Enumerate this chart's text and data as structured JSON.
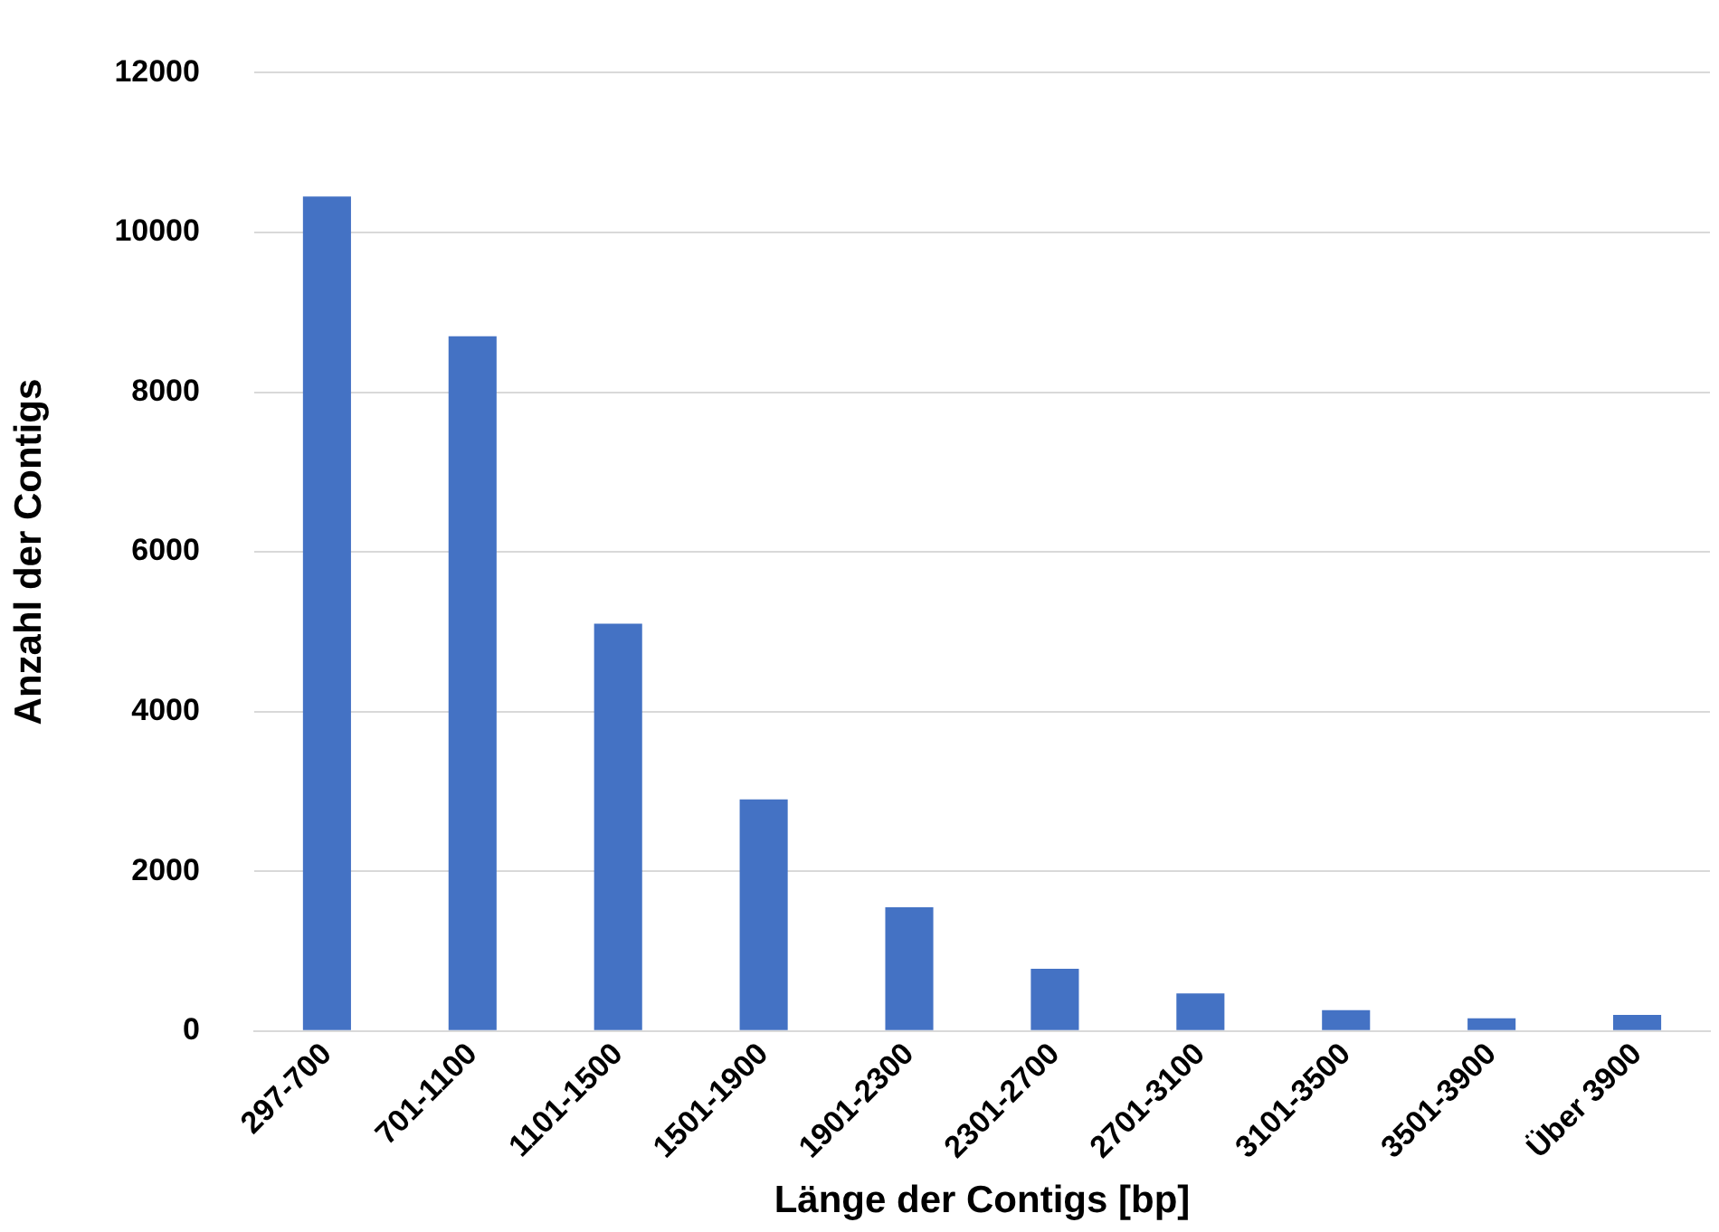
{
  "chart_data": {
    "type": "bar",
    "xlabel": "Länge der Contigs [bp]",
    "ylabel": "Anzahl der Contigs",
    "categories": [
      "297-700",
      "701-1100",
      "1101-1500",
      "1501-1900",
      "1901-2300",
      "2301-2700",
      "2701-3100",
      "3101-3500",
      "3501-3900",
      "Über 3900"
    ],
    "values": [
      10450,
      8700,
      5100,
      2900,
      1550,
      780,
      470,
      260,
      160,
      200
    ],
    "color": "#4472c4",
    "ylim": [
      0,
      12000
    ],
    "yticks": [
      0,
      2000,
      4000,
      6000,
      8000,
      10000,
      12000
    ],
    "grid": "y",
    "legend": false
  }
}
